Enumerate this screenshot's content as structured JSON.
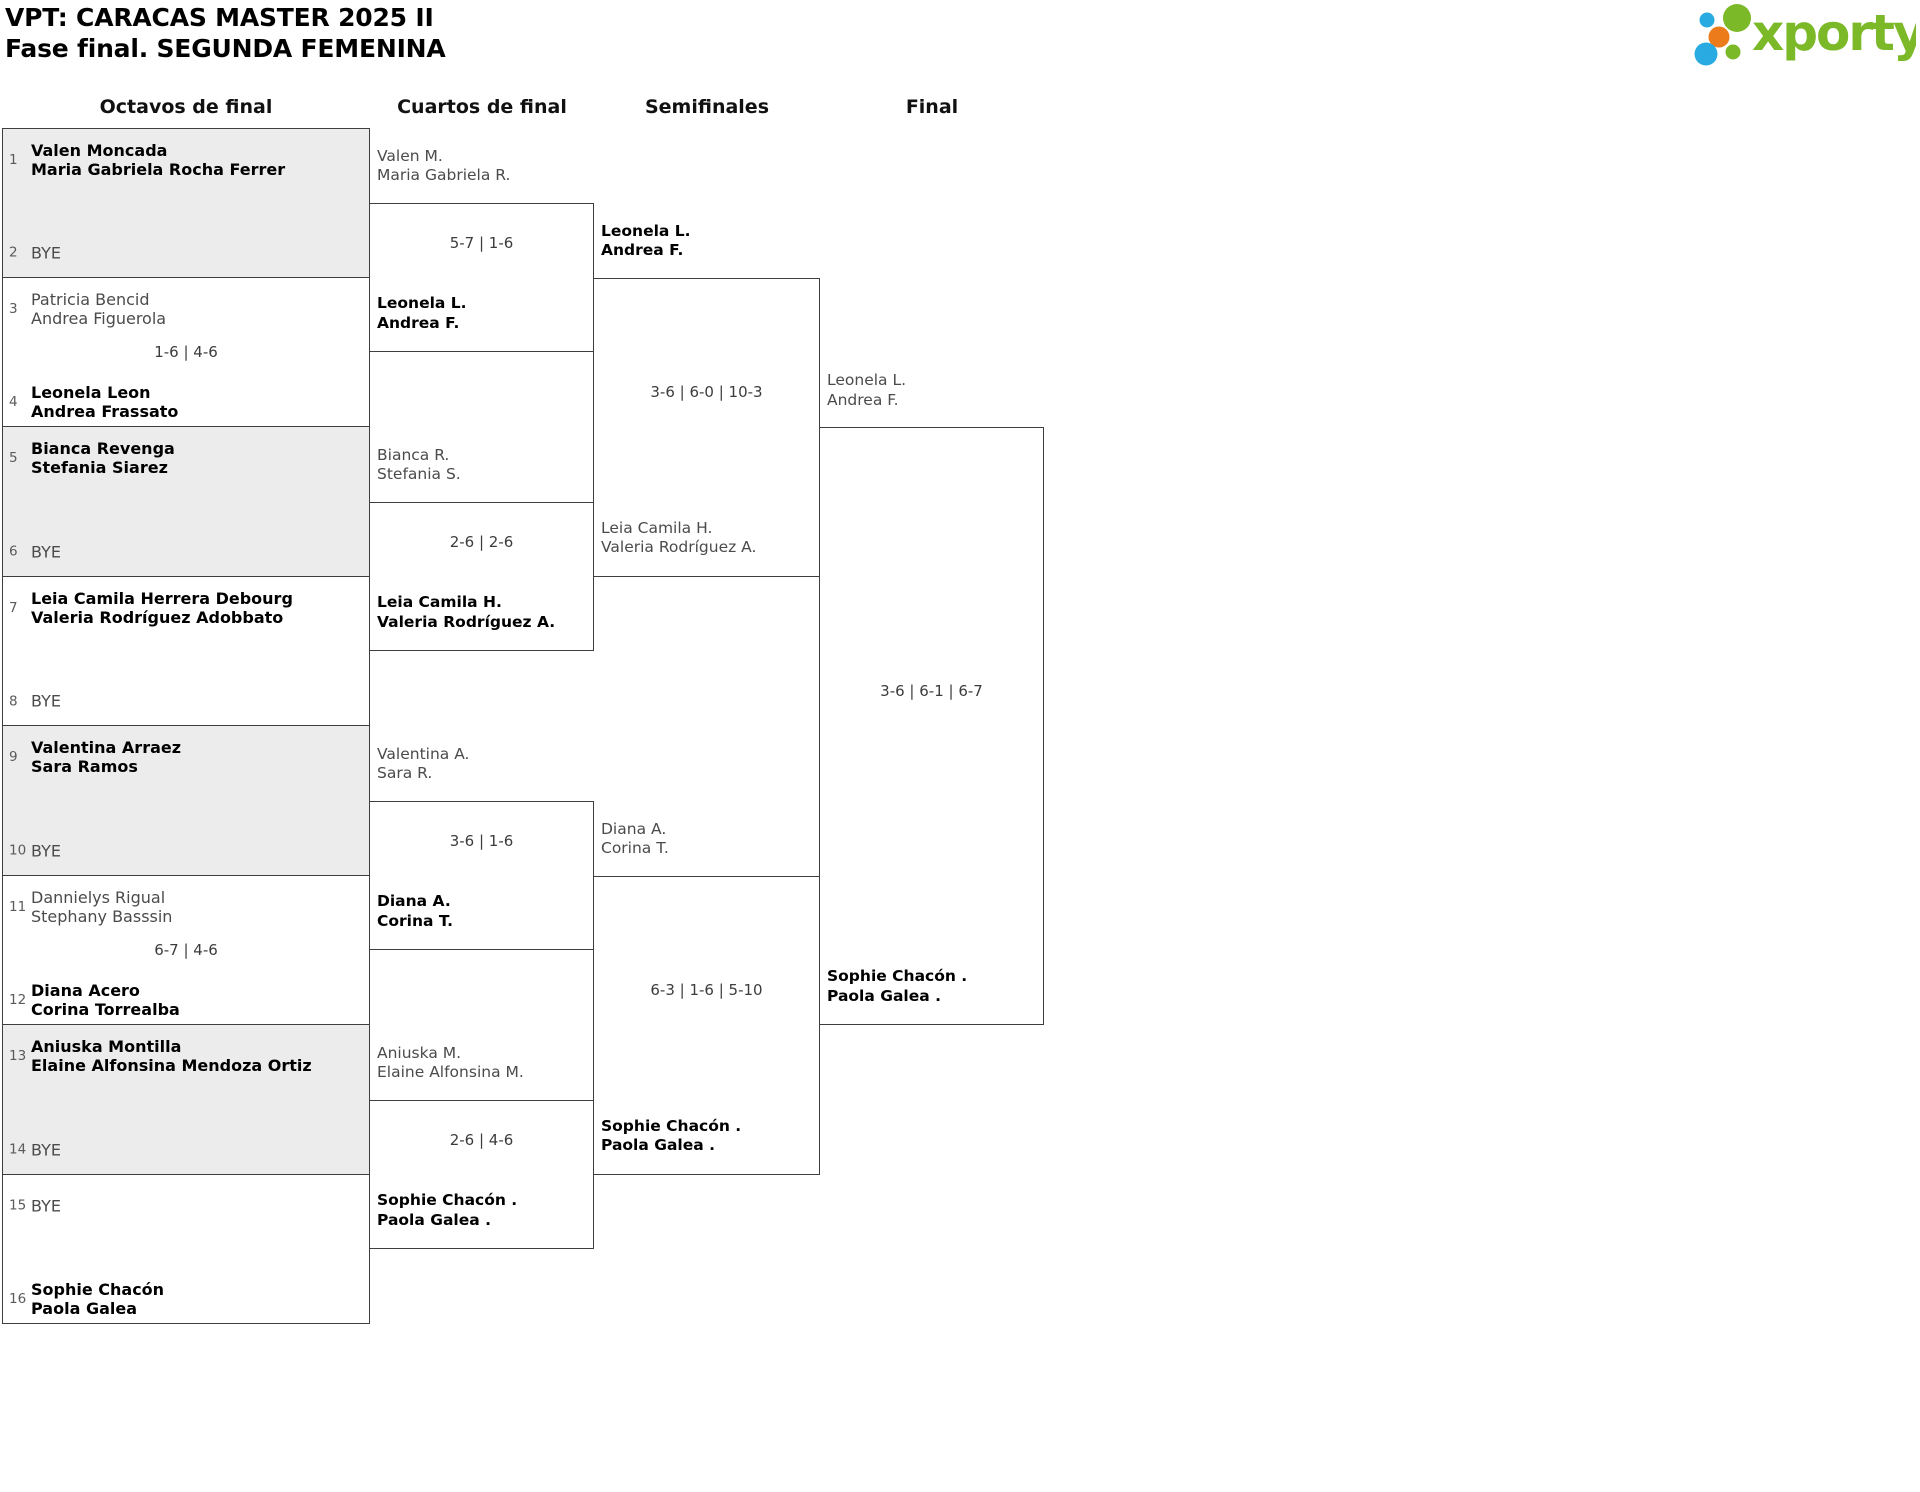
{
  "header": {
    "title": "VPT: CARACAS MASTER 2025 II",
    "subtitle": "Fase final. SEGUNDA FEMENINA"
  },
  "logo": {
    "brand": "xporty",
    "colors": {
      "green": "#7cb928",
      "blue": "#29abe2",
      "orange": "#ec7b1c"
    }
  },
  "colors": {
    "box_border": "#3e3e3e",
    "shaded_match_fill": "#ececec",
    "winner_text": "#000000",
    "player_text": "#4b4b4b",
    "score_text": "#3c3c3c"
  },
  "bracket": {
    "rounds": [
      {
        "name": "Octavos de final",
        "matches": [
          {
            "shaded": true,
            "score": "",
            "top": {
              "seed": "1",
              "lines": [
                "Valen Moncada",
                "Maria Gabriela Rocha Ferrer"
              ],
              "winner": true
            },
            "bottom": {
              "seed": "2",
              "lines": [
                "BYE"
              ],
              "winner": false
            }
          },
          {
            "shaded": false,
            "score": "1-6 | 4-6",
            "top": {
              "seed": "3",
              "lines": [
                "Patricia Bencid",
                "Andrea Figuerola"
              ],
              "winner": false
            },
            "bottom": {
              "seed": "4",
              "lines": [
                "Leonela Leon",
                "Andrea Frassato"
              ],
              "winner": true
            }
          },
          {
            "shaded": true,
            "score": "",
            "top": {
              "seed": "5",
              "lines": [
                "Bianca Revenga",
                "Stefania Siarez"
              ],
              "winner": true
            },
            "bottom": {
              "seed": "6",
              "lines": [
                "BYE"
              ],
              "winner": false
            }
          },
          {
            "shaded": false,
            "score": "",
            "top": {
              "seed": "7",
              "lines": [
                "Leia Camila Herrera Debourg",
                "Valeria Rodríguez Adobbato"
              ],
              "winner": true
            },
            "bottom": {
              "seed": "8",
              "lines": [
                "BYE"
              ],
              "winner": false
            }
          },
          {
            "shaded": true,
            "score": "",
            "top": {
              "seed": "9",
              "lines": [
                "Valentina Arraez",
                "Sara Ramos"
              ],
              "winner": true
            },
            "bottom": {
              "seed": "10",
              "lines": [
                "BYE"
              ],
              "winner": false
            }
          },
          {
            "shaded": false,
            "score": "6-7 | 4-6",
            "top": {
              "seed": "11",
              "lines": [
                "Dannielys Rigual",
                "Stephany Basssin"
              ],
              "winner": false
            },
            "bottom": {
              "seed": "12",
              "lines": [
                "Diana Acero",
                "Corina Torrealba"
              ],
              "winner": true
            }
          },
          {
            "shaded": true,
            "score": "",
            "top": {
              "seed": "13",
              "lines": [
                "Aniuska Montilla",
                "Elaine Alfonsina Mendoza Ortiz"
              ],
              "winner": true
            },
            "bottom": {
              "seed": "14",
              "lines": [
                "BYE"
              ],
              "winner": false
            }
          },
          {
            "shaded": false,
            "score": "",
            "top": {
              "seed": "15",
              "lines": [
                "BYE"
              ],
              "winner": false
            },
            "bottom": {
              "seed": "16",
              "lines": [
                "Sophie Chacón",
                "Paola Galea"
              ],
              "winner": true
            }
          }
        ]
      },
      {
        "name": "Cuartos de final",
        "matches": [
          {
            "score": "5-7 | 1-6",
            "top": {
              "lines": [
                "Valen M.",
                "Maria Gabriela R."
              ],
              "winner": false
            },
            "bottom": {
              "lines": [
                "Leonela L.",
                "Andrea F."
              ],
              "winner": true
            }
          },
          {
            "score": "2-6 | 2-6",
            "top": {
              "lines": [
                "Bianca R.",
                "Stefania S."
              ],
              "winner": false
            },
            "bottom": {
              "lines": [
                "Leia Camila H.",
                "Valeria Rodríguez A."
              ],
              "winner": true
            }
          },
          {
            "score": "3-6 | 1-6",
            "top": {
              "lines": [
                "Valentina A.",
                "Sara R."
              ],
              "winner": false
            },
            "bottom": {
              "lines": [
                "Diana A.",
                "Corina T."
              ],
              "winner": true
            }
          },
          {
            "score": "2-6 | 4-6",
            "top": {
              "lines": [
                "Aniuska M.",
                "Elaine Alfonsina M."
              ],
              "winner": false
            },
            "bottom": {
              "lines": [
                "Sophie Chacón .",
                "Paola Galea ."
              ],
              "winner": true
            }
          }
        ]
      },
      {
        "name": "Semifinales",
        "matches": [
          {
            "score": "3-6 | 6-0 | 10-3",
            "top": {
              "lines": [
                "Leonela L.",
                "Andrea F."
              ],
              "winner": true
            },
            "bottom": {
              "lines": [
                "Leia Camila H.",
                "Valeria Rodríguez A."
              ],
              "winner": false
            }
          },
          {
            "score": "6-3 | 1-6 | 5-10",
            "top": {
              "lines": [
                "Diana A.",
                "Corina T."
              ],
              "winner": false
            },
            "bottom": {
              "lines": [
                "Sophie Chacón .",
                "Paola Galea ."
              ],
              "winner": true
            }
          }
        ]
      },
      {
        "name": "Final",
        "matches": [
          {
            "score": "3-6 | 6-1 | 6-7",
            "top": {
              "lines": [
                "Leonela L.",
                "Andrea F."
              ],
              "winner": false
            },
            "bottom": {
              "lines": [
                "Sophie Chacón .",
                "Paola Galea ."
              ],
              "winner": true
            }
          }
        ]
      }
    ]
  }
}
